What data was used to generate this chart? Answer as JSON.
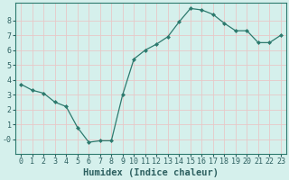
{
  "x": [
    0,
    1,
    2,
    3,
    4,
    5,
    6,
    7,
    8,
    9,
    10,
    11,
    12,
    13,
    14,
    15,
    16,
    17,
    18,
    19,
    20,
    21,
    22,
    23
  ],
  "y": [
    3.7,
    3.3,
    3.1,
    2.5,
    2.2,
    0.8,
    -0.2,
    -0.1,
    -0.1,
    3.0,
    5.4,
    6.0,
    6.4,
    6.9,
    7.9,
    8.8,
    8.7,
    8.4,
    7.8,
    7.3,
    7.3,
    6.5,
    6.5,
    7.0
  ],
  "line_color": "#2d7a6e",
  "marker": "D",
  "marker_size": 2.0,
  "bg_color": "#d5f0ec",
  "grid_color": "#e8c8c8",
  "xlabel": "Humidex (Indice chaleur)",
  "ylim": [
    -1.0,
    9.2
  ],
  "xlim": [
    -0.5,
    23.5
  ],
  "yticks": [
    0,
    1,
    2,
    3,
    4,
    5,
    6,
    7,
    8
  ],
  "xtick_labels": [
    "0",
    "1",
    "2",
    "3",
    "4",
    "5",
    "6",
    "7",
    "8",
    "9",
    "10",
    "11",
    "12",
    "13",
    "14",
    "15",
    "16",
    "17",
    "18",
    "19",
    "20",
    "21",
    "22",
    "23"
  ],
  "tick_fontsize": 6.0,
  "xlabel_fontsize": 7.5,
  "linewidth": 0.9
}
